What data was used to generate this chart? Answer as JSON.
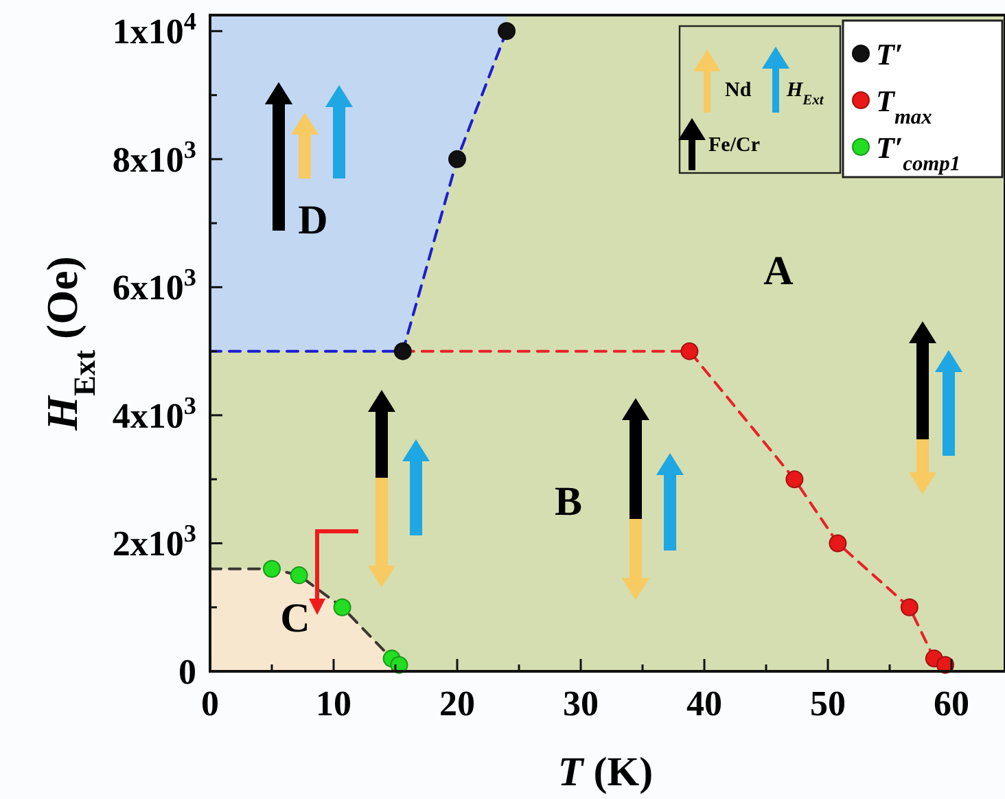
{
  "chart_data": {
    "type": "scatter",
    "xlabel": "T (K)",
    "ylabel": "H$_{Ext}$ (Oe)",
    "xlim": [
      0,
      64
    ],
    "ylim": [
      0,
      10250
    ],
    "xticks": [
      0,
      {
        "value": 5,
        "label": null
      },
      10,
      {
        "value": 15,
        "label": null
      },
      20,
      {
        "value": 25,
        "label": null
      },
      30,
      {
        "value": 35,
        "label": null
      },
      40,
      {
        "value": 45,
        "label": null
      },
      50,
      {
        "value": 55,
        "label": null
      },
      60
    ],
    "yticks": [
      {
        "value": 0,
        "label": "0"
      },
      {
        "value": 1000,
        "label": null
      },
      {
        "value": 2000,
        "label": "2x10$^{3}$"
      },
      {
        "value": 3000,
        "label": null
      },
      {
        "value": 4000,
        "label": "4x10$^{3}$"
      },
      {
        "value": 5000,
        "label": null
      },
      {
        "value": 6000,
        "label": "6x10$^{3}$"
      },
      {
        "value": 7000,
        "label": null
      },
      {
        "value": 8000,
        "label": "8x10$^{3}$"
      },
      {
        "value": 9000,
        "label": null
      },
      {
        "value": 10000,
        "label": "1x10$^{4}$"
      }
    ],
    "grid": false,
    "legend": "top right",
    "annotations": [
      "A",
      "B",
      "C",
      "D",
      "Nd",
      "H$_{Ext}$",
      "Fe/Cr"
    ],
    "series": [
      {
        "type": "area",
        "color": "#f8e7cf",
        "line_style": "dashed",
        "x": [
          0,
          5,
          7.2,
          10.7,
          14.7,
          15.3
        ],
        "values": [
          1600,
          1600,
          1500,
          1000,
          200,
          100
        ]
      },
      {
        "type": "line",
        "color": "#1c1cd0",
        "line_style": "dashed",
        "x": [
          0,
          15.6,
          20,
          24
        ],
        "values": [
          5000,
          5000,
          8000,
          10000
        ],
        "lower": [
          5000,
          5000,
          8000,
          10000
        ],
        "upper": [
          10250,
          10250,
          10250,
          10250
        ]
      },
      {
        "type": "line",
        "color": "#e8202a",
        "line_style": "dashed",
        "x": [
          15.6,
          38.8,
          47.3,
          50.8,
          56.6,
          58.6,
          59.5
        ],
        "values": [
          5000,
          5000,
          3000,
          2000,
          1000,
          200,
          100
        ]
      },
      {
        "name": "T′",
        "color": "#111111",
        "marker": "circle",
        "x": [
          15.6,
          20,
          24
        ],
        "values": [
          5000,
          8000,
          10000
        ]
      },
      {
        "name": "T$_{max}$",
        "color": "#e81818",
        "marker": "circle",
        "x": [
          38.8,
          47.3,
          50.8,
          56.6,
          58.6,
          59.5
        ],
        "values": [
          5000,
          3000,
          2000,
          1000,
          200,
          100
        ]
      },
      {
        "name": "T′$_{comp1}$",
        "color": "#22dd22",
        "marker": "circle",
        "x": [
          5,
          7.2,
          10.7,
          14.7,
          15.3
        ],
        "values": [
          1600,
          1500,
          1000,
          200,
          100
        ]
      }
    ]
  }
}
